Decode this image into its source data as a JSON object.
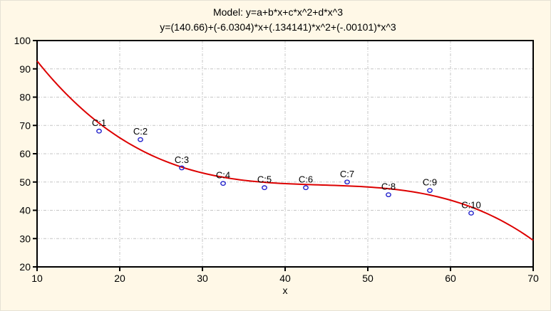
{
  "chart_data": {
    "type": "scatter",
    "title": "Model: y=a+b*x+c*x^2+d*x^3",
    "subtitle": "y=(140.66)+(-6.0304)*x+(.134141)*x^2+(-.00101)*x^3",
    "xlabel": "x",
    "ylabel": "",
    "xlim": [
      10,
      70
    ],
    "ylim": [
      20,
      100
    ],
    "x_ticks": [
      10,
      20,
      30,
      40,
      50,
      60,
      70
    ],
    "y_ticks": [
      20,
      30,
      40,
      50,
      60,
      70,
      80,
      90,
      100
    ],
    "grid": true,
    "legend": "none",
    "points": [
      {
        "label": "C:1",
        "x": 17.5,
        "y": 68
      },
      {
        "label": "C:2",
        "x": 22.5,
        "y": 65
      },
      {
        "label": "C:3",
        "x": 27.5,
        "y": 55
      },
      {
        "label": "C:4",
        "x": 32.5,
        "y": 49.5
      },
      {
        "label": "C:5",
        "x": 37.5,
        "y": 48
      },
      {
        "label": "C:6",
        "x": 42.5,
        "y": 48
      },
      {
        "label": "C:7",
        "x": 47.5,
        "y": 50
      },
      {
        "label": "C:8",
        "x": 52.5,
        "y": 45.5
      },
      {
        "label": "C:9",
        "x": 57.5,
        "y": 47
      },
      {
        "label": "C:10",
        "x": 62.5,
        "y": 39
      }
    ],
    "fit_curve": {
      "model": "cubic",
      "coefficients": {
        "a": 140.66,
        "b": -6.0304,
        "c": 0.134141,
        "d": -0.00101
      },
      "x_start": 10,
      "x_end": 70
    },
    "colors": {
      "background": "#fff8e7",
      "plot_background": "#ffffff",
      "frame": "#000000",
      "grid": "#c6c6c6",
      "curve": "#dd0000",
      "marker": "#2222cc",
      "text": "#000000"
    }
  }
}
